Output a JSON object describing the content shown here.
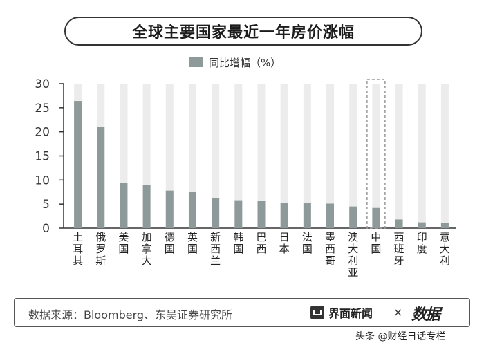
{
  "title": "全球主要国家最近一年房价涨幅",
  "legend_label": "同比增幅（%）",
  "footer": {
    "source": "数据来源：Bloomberg、东吴证券研究所",
    "brand1": "界面新闻",
    "times": "×",
    "brand2": "数据"
  },
  "watermark": "头条 @财经日话专栏",
  "colors": {
    "bar": "#8d9a99",
    "track": "#ececec",
    "highlight_border": "#999999"
  },
  "chart_data": {
    "type": "bar",
    "categories": [
      "土耳其",
      "俄罗斯",
      "美国",
      "加拿大",
      "德国",
      "英国",
      "新西兰",
      "韩国",
      "巴西",
      "日本",
      "法国",
      "墨西哥",
      "澳大利亚",
      "中国",
      "西班牙",
      "印度",
      "意大利"
    ],
    "series": [
      {
        "name": "同比增幅（%）",
        "values": [
          26.4,
          21.1,
          9.4,
          8.9,
          7.8,
          7.6,
          6.3,
          5.8,
          5.6,
          5.3,
          5.2,
          5.1,
          4.5,
          4.2,
          1.8,
          1.2,
          1.1
        ]
      }
    ],
    "ylim": [
      0,
      30
    ],
    "yticks": [
      0,
      5,
      10,
      15,
      20,
      25,
      30
    ],
    "highlight": "中国",
    "legend": "top-center",
    "grid": false
  }
}
